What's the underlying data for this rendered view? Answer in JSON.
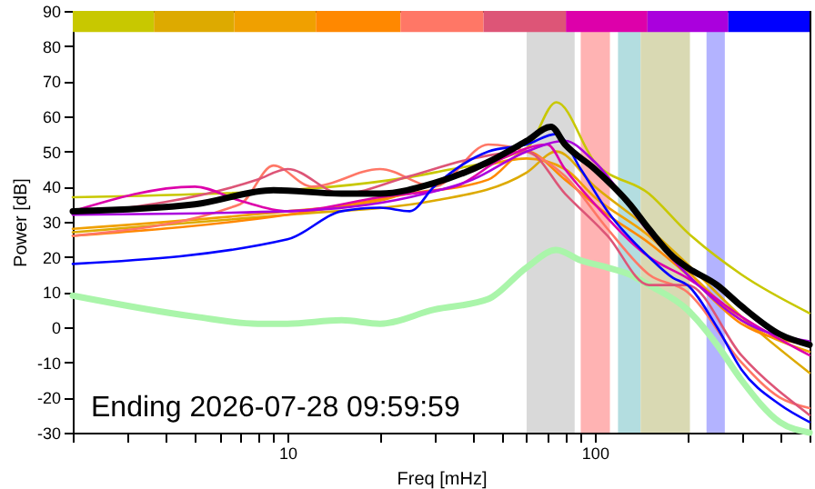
{
  "chart_data": {
    "type": "line",
    "xlabel": "Freq [mHz]",
    "ylabel": "Power [dB]",
    "log": "x",
    "grid": false,
    "marker": "none",
    "line_style": "solid",
    "xlim": [
      2,
      500
    ],
    "ylim": [
      -30,
      90
    ],
    "xticks": [
      {
        "value": 2,
        "label": null
      },
      {
        "value": 3,
        "label": null
      },
      {
        "value": 4,
        "label": null
      },
      {
        "value": 5,
        "label": null
      },
      {
        "value": 6,
        "label": null
      },
      {
        "value": 7,
        "label": null
      },
      {
        "value": 8,
        "label": null
      },
      {
        "value": 9,
        "label": null
      },
      10,
      {
        "value": 20,
        "label": null
      },
      {
        "value": 30,
        "label": null
      },
      {
        "value": 40,
        "label": null
      },
      {
        "value": 50,
        "label": null
      },
      {
        "value": 60,
        "label": null
      },
      {
        "value": 70,
        "label": null
      },
      {
        "value": 80,
        "label": null
      },
      {
        "value": 90,
        "label": null
      },
      100,
      {
        "value": 200,
        "label": null
      },
      {
        "value": 300,
        "label": null
      },
      {
        "value": 400,
        "label": null
      },
      {
        "value": 500,
        "label": null
      }
    ],
    "yticks": [
      -30,
      -20,
      -10,
      0,
      10,
      20,
      30,
      40,
      50,
      60,
      70,
      80,
      90
    ],
    "annotations": [
      "Ending 2026-07-28 09:59:59"
    ],
    "bands": [
      {
        "axis": "x",
        "from": 60,
        "to": 86,
        "color": "#d9d9d9"
      },
      {
        "axis": "x",
        "from": 90,
        "to": 112,
        "color": "#ffb3b3"
      },
      {
        "axis": "x",
        "from": 119,
        "to": 141,
        "color": "#b3dde0"
      },
      {
        "axis": "x",
        "from": 141,
        "to": 204,
        "color": "#d9d9b3"
      },
      {
        "axis": "x",
        "from": 231,
        "to": 265,
        "color": "#b3b3ff"
      }
    ],
    "series": [
      {
        "type": "bar",
        "x": [
          2.7,
          5,
          9,
          17,
          32,
          59,
          110,
          200,
          370
        ],
        "base": [
          84,
          84,
          84,
          84,
          84,
          84,
          84,
          84,
          84
        ],
        "values": [
          6,
          6,
          6,
          6,
          6,
          6,
          6,
          6,
          6
        ],
        "colors": [
          "#c8c800",
          "#ddaa00",
          "#f0a000",
          "#ff8800",
          "#ff7766",
          "#dd5577",
          "#dd00aa",
          "#aa00dd",
          "#0000ff"
        ]
      },
      {
        "color": "#aaf5aa",
        "x": [
          2,
          5,
          8,
          10,
          15,
          20,
          30,
          45,
          60,
          75,
          90,
          110,
          130,
          150,
          200,
          250,
          300,
          400,
          500
        ],
        "values": [
          9,
          3,
          1,
          1,
          2,
          1,
          5,
          8,
          17,
          22,
          19,
          17,
          15,
          12,
          5,
          -5,
          -15,
          -27,
          -30
        ]
      },
      {
        "color": "#c8c800",
        "x": [
          2,
          10,
          30,
          60,
          75,
          100,
          150,
          200,
          300,
          500
        ],
        "values": [
          37,
          39,
          44,
          51,
          64,
          47,
          38,
          27,
          15,
          4
        ]
      },
      {
        "color": "#ddaa00",
        "x": [
          2,
          10,
          30,
          60,
          75,
          100,
          150,
          200,
          300,
          500
        ],
        "values": [
          27,
          32,
          36,
          44,
          50,
          40,
          28,
          18,
          3,
          -13
        ]
      },
      {
        "color": "#f0a000",
        "x": [
          2,
          10,
          20,
          40,
          60,
          80,
          100,
          150,
          200,
          300,
          500
        ],
        "values": [
          28,
          33,
          36,
          45,
          48,
          45,
          37,
          26,
          16,
          2,
          -7
        ]
      },
      {
        "color": "#ff8800",
        "x": [
          2,
          10,
          25,
          45,
          60,
          80,
          110,
          150,
          200,
          300,
          500
        ],
        "values": [
          26,
          32,
          38,
          42,
          50,
          42,
          32,
          24,
          15,
          1,
          -5
        ]
      },
      {
        "color": "#ff7766",
        "x": [
          2,
          7,
          9,
          12,
          20,
          30,
          45,
          60,
          80,
          110,
          150,
          200,
          300,
          400,
          500
        ],
        "values": [
          26,
          35,
          46,
          40,
          45,
          40,
          52,
          50,
          43,
          28,
          15,
          10,
          -10,
          -20,
          -23
        ]
      },
      {
        "color": "#dd5577",
        "x": [
          2,
          8,
          10,
          15,
          25,
          40,
          60,
          80,
          110,
          150,
          200,
          300,
          500
        ],
        "values": [
          32,
          42,
          45,
          38,
          43,
          48,
          50,
          38,
          26,
          12,
          12,
          -8,
          -25
        ]
      },
      {
        "color": "#dd00aa",
        "x": [
          2,
          5,
          7,
          10,
          20,
          35,
          50,
          70,
          80,
          100,
          150,
          200,
          300,
          500
        ],
        "values": [
          33,
          40,
          36,
          33,
          37,
          40,
          48,
          52,
          45,
          35,
          20,
          14,
          3,
          -8
        ]
      },
      {
        "color": "#aa00dd",
        "x": [
          2,
          10,
          25,
          40,
          60,
          80,
          100,
          150,
          200,
          300,
          500
        ],
        "values": [
          32,
          33,
          37,
          42,
          50,
          53,
          47,
          27,
          15,
          2,
          -4
        ]
      },
      {
        "color": "#0000ff",
        "x": [
          2,
          10,
          15,
          20,
          25,
          30,
          45,
          60,
          75,
          90,
          110,
          150,
          180,
          200,
          250,
          300,
          400,
          500
        ],
        "values": [
          18,
          25,
          33,
          34,
          33,
          40,
          50,
          52,
          55,
          45,
          33,
          20,
          14,
          12,
          0,
          -12,
          -22,
          -27
        ]
      },
      {
        "color": "#000000",
        "x": [
          2,
          5,
          9,
          15,
          20,
          30,
          45,
          60,
          72,
          80,
          100,
          130,
          150,
          180,
          200,
          250,
          300,
          400,
          500
        ],
        "values": [
          33,
          35,
          39,
          38,
          38,
          41,
          47,
          53,
          57,
          52,
          45,
          35,
          28,
          20,
          17,
          12,
          6,
          -2,
          -5
        ]
      }
    ]
  }
}
